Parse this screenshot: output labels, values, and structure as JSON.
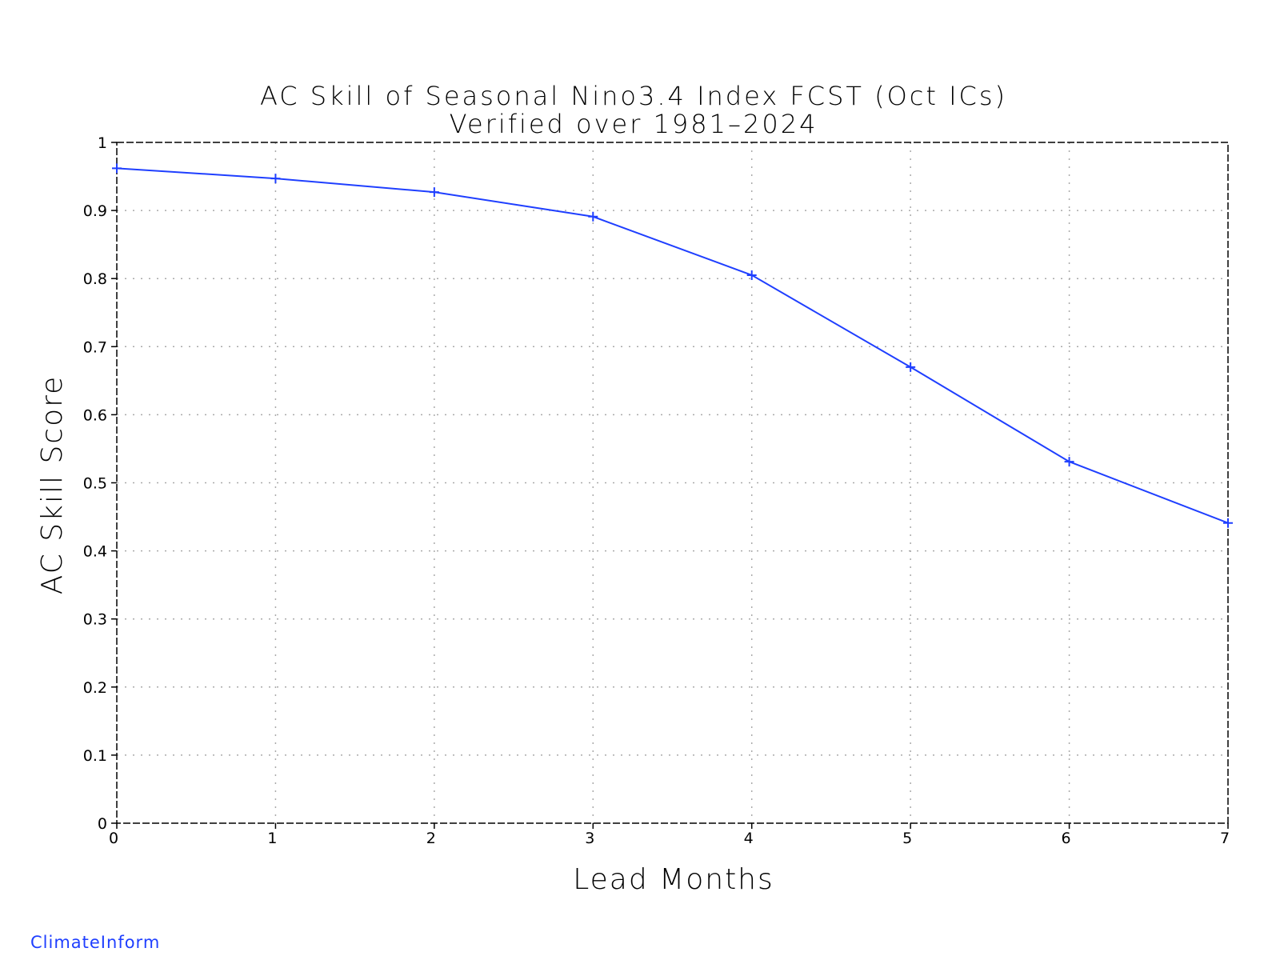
{
  "chart_data": {
    "type": "line",
    "title": "AC Skill of Seasonal Nino3.4 Index FCST (Oct ICs)",
    "subtitle": "Verified over 1981–2024",
    "xlabel": "Lead Months",
    "ylabel": "AC Skill Score",
    "xlim": [
      0,
      7
    ],
    "ylim": [
      0,
      1
    ],
    "xticks": [
      "0",
      "1",
      "2",
      "3",
      "4",
      "5",
      "6",
      "7"
    ],
    "yticks": [
      "0",
      "0.1",
      "0.2",
      "0.3",
      "0.4",
      "0.5",
      "0.6",
      "0.7",
      "0.8",
      "0.9",
      "1"
    ],
    "grid": true,
    "x": [
      0,
      1,
      2,
      3,
      4,
      5,
      6,
      7
    ],
    "series": [
      {
        "values": [
          0.962,
          0.947,
          0.927,
          0.891,
          0.805,
          0.67,
          0.531,
          0.441
        ],
        "color": "#1f3fff",
        "marker": "plus"
      }
    ]
  },
  "footer": {
    "text": "ClimateInform",
    "color": "#1f3fff"
  },
  "colors": {
    "axis": "#000000",
    "grid": "#aaaaaa"
  }
}
